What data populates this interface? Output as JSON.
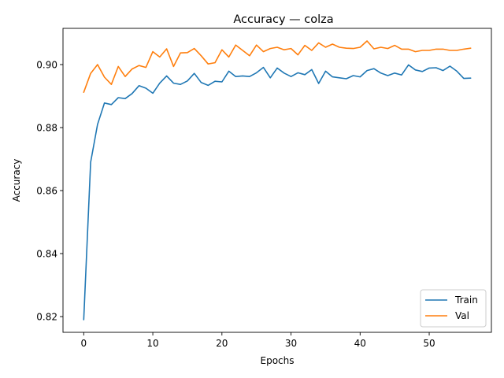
{
  "chart_data": {
    "type": "line",
    "title": "Accuracy — colza",
    "xlabel": "Epochs",
    "ylabel": "Accuracy",
    "xlim": [
      -3,
      59
    ],
    "ylim": [
      0.815,
      0.9115
    ],
    "xticks": [
      0,
      10,
      20,
      30,
      40,
      50
    ],
    "yticks": [
      0.82,
      0.84,
      0.86,
      0.88,
      0.9
    ],
    "ytick_labels": [
      "0.82",
      "0.84",
      "0.86",
      "0.88",
      "0.90"
    ],
    "grid": false,
    "legend": {
      "position": "bottom-right"
    },
    "x": [
      0,
      1,
      2,
      3,
      4,
      5,
      6,
      7,
      8,
      9,
      10,
      11,
      12,
      13,
      14,
      15,
      16,
      17,
      18,
      19,
      20,
      21,
      22,
      23,
      24,
      25,
      26,
      27,
      28,
      29,
      30,
      31,
      32,
      33,
      34,
      35,
      36,
      37,
      38,
      39,
      40,
      41,
      42,
      43,
      44,
      45,
      46,
      47,
      48,
      49,
      50,
      51,
      52,
      53,
      54,
      55,
      56
    ],
    "series": [
      {
        "name": "Train",
        "color": "#1f77b4",
        "values": [
          0.819,
          0.869,
          0.881,
          0.8878,
          0.8873,
          0.8895,
          0.8892,
          0.8908,
          0.8933,
          0.8925,
          0.8909,
          0.8941,
          0.8964,
          0.8941,
          0.8937,
          0.8948,
          0.8972,
          0.8943,
          0.8934,
          0.8947,
          0.8945,
          0.8979,
          0.8962,
          0.8964,
          0.8962,
          0.8974,
          0.8991,
          0.8958,
          0.8989,
          0.8973,
          0.8962,
          0.8974,
          0.8968,
          0.8984,
          0.894,
          0.8979,
          0.8961,
          0.8958,
          0.8955,
          0.8965,
          0.8961,
          0.8981,
          0.8987,
          0.8973,
          0.8965,
          0.8973,
          0.8967,
          0.8999,
          0.8983,
          0.8978,
          0.8989,
          0.899,
          0.8981,
          0.8995,
          0.8979,
          0.8956,
          0.8957
        ]
      },
      {
        "name": "Val",
        "color": "#ff7f0e",
        "values": [
          0.8912,
          0.8972,
          0.9,
          0.896,
          0.8937,
          0.8994,
          0.8962,
          0.8986,
          0.8997,
          0.8991,
          0.9041,
          0.9024,
          0.905,
          0.8994,
          0.9037,
          0.9038,
          0.9051,
          0.9028,
          0.9002,
          0.9006,
          0.9047,
          0.9024,
          0.9062,
          0.9045,
          0.9028,
          0.9062,
          0.9041,
          0.9051,
          0.9055,
          0.9047,
          0.9051,
          0.9031,
          0.9061,
          0.9045,
          0.9069,
          0.9055,
          0.9065,
          0.9055,
          0.9052,
          0.9051,
          0.9055,
          0.9075,
          0.905,
          0.9055,
          0.9051,
          0.9061,
          0.9049,
          0.9049,
          0.9041,
          0.9045,
          0.9045,
          0.9049,
          0.9049,
          0.9045,
          0.9045,
          0.9049,
          0.9052
        ]
      }
    ]
  }
}
